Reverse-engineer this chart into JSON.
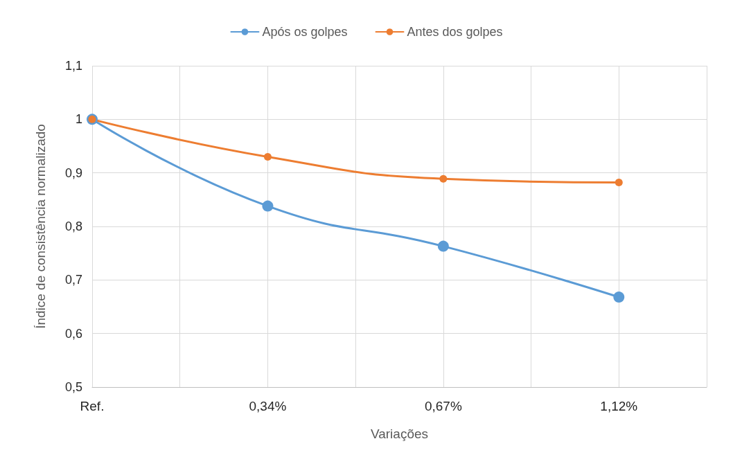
{
  "chart_data": {
    "type": "line",
    "xlabel": "Variações",
    "ylabel": "Índice de consistência normalizado",
    "categories": [
      "Ref.",
      null,
      "0,34%",
      null,
      "0,67%",
      null,
      "1,12%",
      null
    ],
    "series": [
      {
        "name": "Após os golpes",
        "color": "#5b9bd5",
        "values": [
          1,
          null,
          0.838,
          null,
          0.763,
          null,
          0.668,
          null
        ]
      },
      {
        "name": "Antes dos golpes",
        "color": "#ed7d31",
        "values": [
          1,
          null,
          0.93,
          null,
          0.889,
          null,
          0.882,
          null
        ]
      }
    ],
    "ylim": [
      0.5,
      1.1
    ],
    "yticks": [
      {
        "value": 0.5,
        "label": "0,5"
      },
      {
        "value": 0.6,
        "label": "0,6"
      },
      {
        "value": 0.7,
        "label": "0,7"
      },
      {
        "value": 0.8,
        "label": "0,8"
      },
      {
        "value": 0.9,
        "label": "0,9"
      },
      1,
      {
        "value": 1.1,
        "label": "1,1"
      }
    ],
    "grid": true,
    "legend": "top",
    "marker": "circle",
    "line_style": "solid"
  }
}
